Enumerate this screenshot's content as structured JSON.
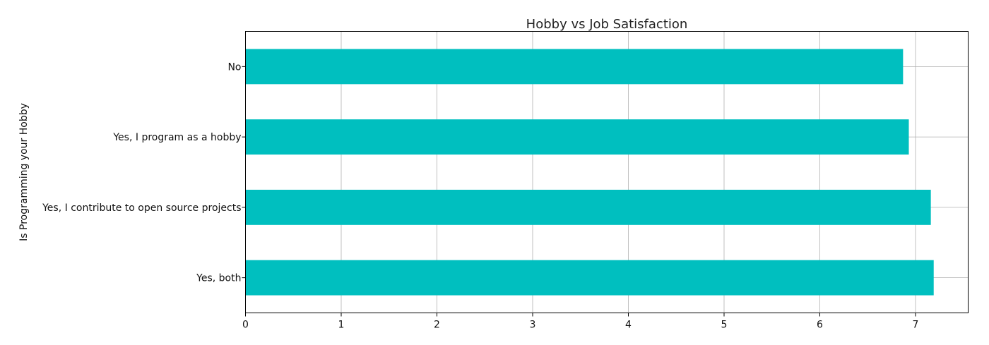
{
  "chart_data": {
    "type": "bar",
    "orientation": "horizontal",
    "title": "Hobby vs Job Satisfaction",
    "xlabel": "",
    "ylabel": "Is Programming your Hobby",
    "categories": [
      "No",
      "Yes, I program as a hobby",
      "Yes, I contribute to open source projects",
      "Yes, both"
    ],
    "values": [
      6.87,
      6.93,
      7.16,
      7.19
    ],
    "xlim": [
      0,
      7.55
    ],
    "x_ticks": [
      0,
      1,
      2,
      3,
      4,
      5,
      6,
      7
    ],
    "grid": true,
    "bar_color": "#00BFBF"
  }
}
